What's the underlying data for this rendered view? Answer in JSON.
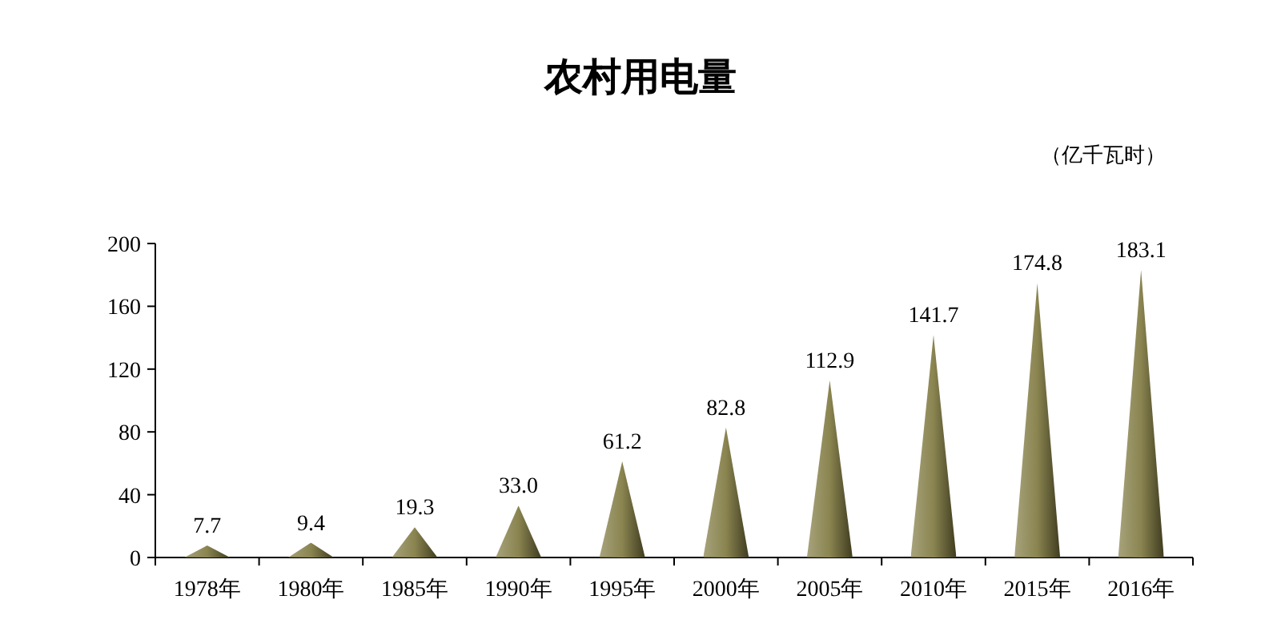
{
  "chart_data": {
    "type": "bar",
    "title": "农村用电量",
    "ylabel": "（亿千瓦时）",
    "categories": [
      "1978年",
      "1980年",
      "1985年",
      "1990年",
      "1995年",
      "2000年",
      "2005年",
      "2010年",
      "2015年",
      "2016年"
    ],
    "values": [
      7.7,
      9.4,
      19.3,
      33.0,
      61.2,
      82.8,
      112.9,
      141.7,
      174.8,
      183.1
    ],
    "value_labels": [
      "7.7",
      "9.4",
      "19.3",
      "33.0",
      "61.2",
      "82.8",
      "112.9",
      "141.7",
      "174.8",
      "183.1"
    ],
    "color": "#8a8450",
    "ylim": [
      0,
      200
    ],
    "yticks": [
      0,
      40,
      80,
      120,
      160,
      200
    ]
  }
}
